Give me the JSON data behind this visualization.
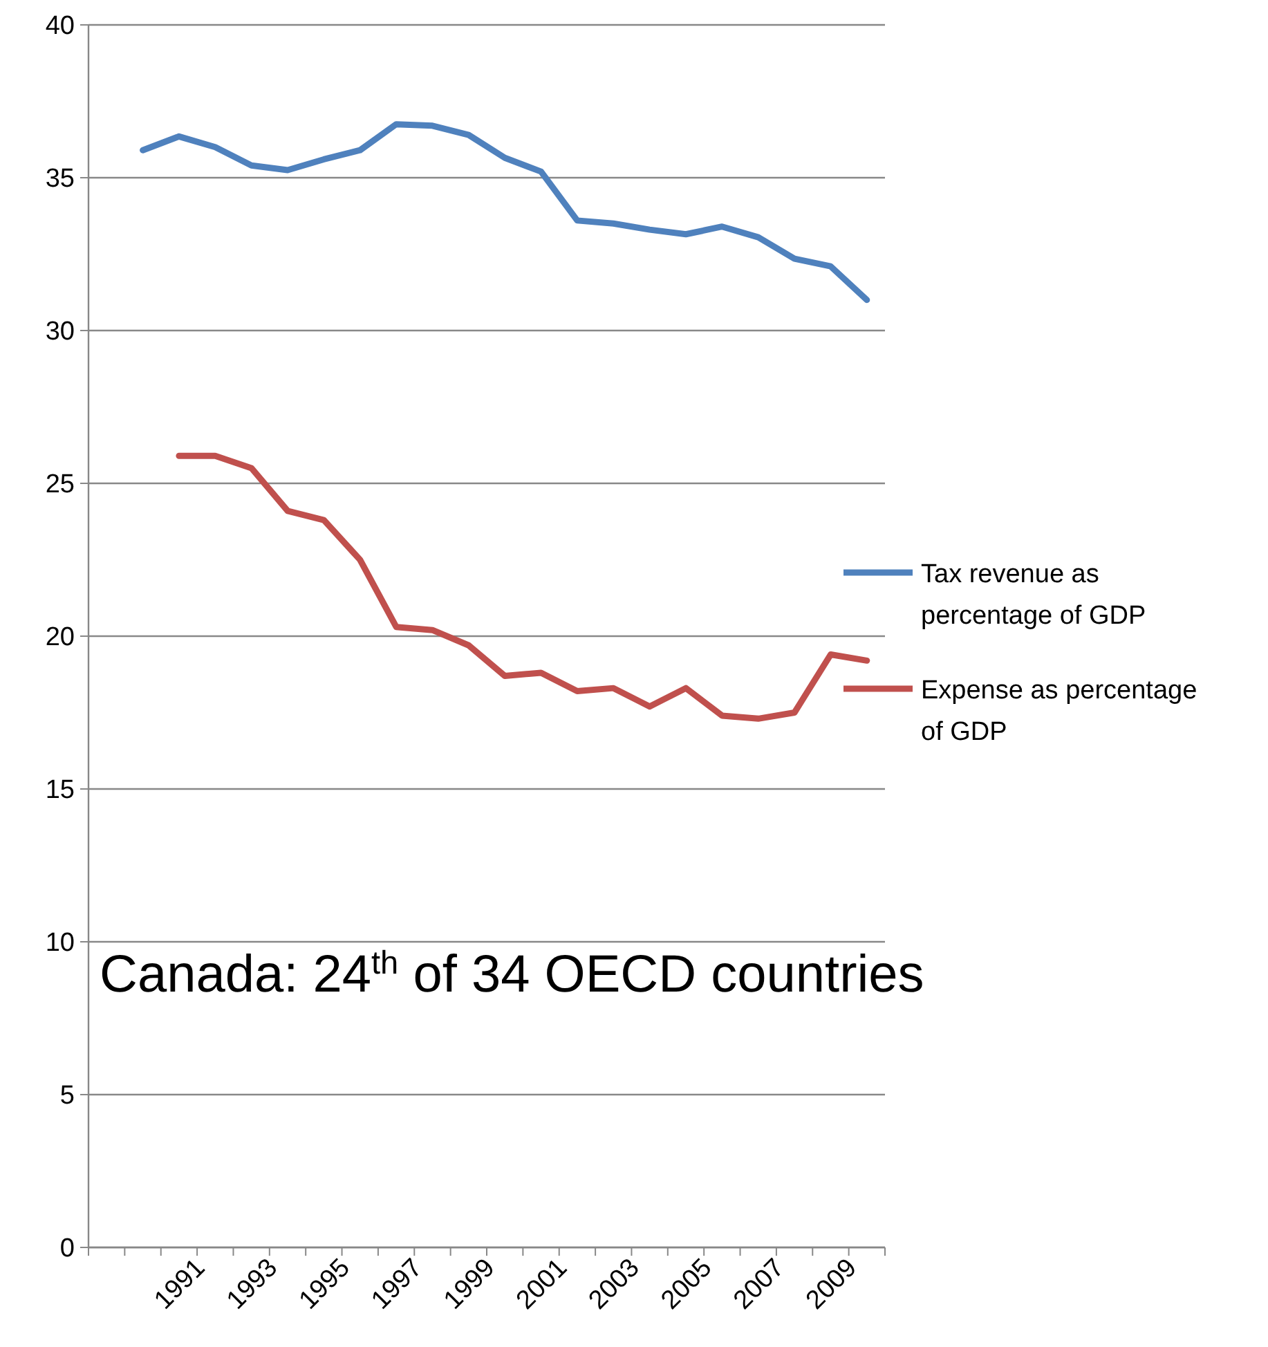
{
  "chart_data": {
    "type": "line",
    "categories": [
      null,
      null,
      "1991",
      null,
      "1993",
      null,
      "1995",
      null,
      "1997",
      null,
      "1999",
      null,
      "2001",
      null,
      "2003",
      null,
      "2005",
      null,
      "2007",
      null,
      "2009",
      null
    ],
    "series": [
      {
        "name": "Tax revenue as percentage of GDP",
        "color": "#4f81bd",
        "values": [
          null,
          35.9,
          36.35,
          36.0,
          35.4,
          35.25,
          35.6,
          35.9,
          36.75,
          36.7,
          36.4,
          35.65,
          35.2,
          33.6,
          33.5,
          33.3,
          33.15,
          33.4,
          33.05,
          32.35,
          32.1,
          31.0
        ]
      },
      {
        "name": "Expense as percentage of GDP",
        "color": "#c0504d",
        "values": [
          null,
          null,
          25.9,
          25.9,
          25.5,
          24.1,
          23.8,
          22.5,
          20.3,
          20.2,
          19.7,
          18.7,
          18.8,
          18.2,
          18.3,
          17.7,
          18.3,
          17.4,
          17.3,
          17.5,
          19.4,
          19.2
        ]
      }
    ],
    "ylim": [
      0,
      40
    ],
    "yticks": [
      0,
      5,
      10,
      15,
      20,
      25,
      30,
      35,
      40
    ],
    "grid": "y",
    "legend": "right",
    "marker": "none",
    "line_style": "solid",
    "annotations": [
      "Canada: 24$^{th}$ of 34 OECD countries"
    ]
  }
}
